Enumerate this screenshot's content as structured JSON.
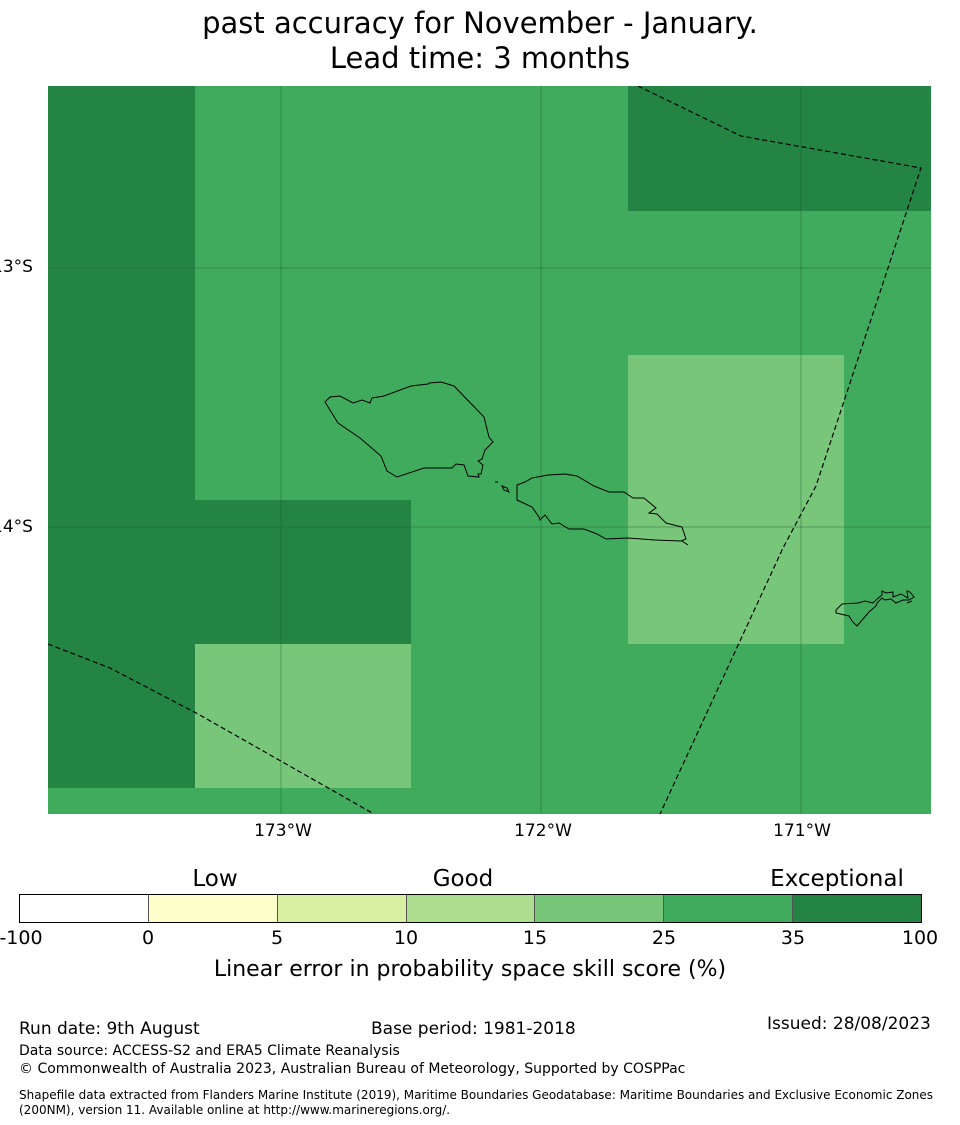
{
  "title": {
    "line2": "past accuracy for November - January.",
    "line3": "Lead time: 3 months"
  },
  "map": {
    "lat_labels": [
      "13°S",
      "14°S"
    ],
    "lon_labels": [
      "173°W",
      "172°W",
      "171°W"
    ]
  },
  "colorbar": {
    "categories": [
      "Low",
      "Good",
      "Exceptional"
    ],
    "ticks": [
      "-100",
      "0",
      "5",
      "10",
      "15",
      "25",
      "35",
      "100"
    ],
    "colors": [
      "#ffffff",
      "#ffffcc",
      "#d9f0a3",
      "#addd8e",
      "#78c679",
      "#41ab5d",
      "#238443"
    ],
    "label": "Linear error in probability space skill score (%)"
  },
  "footer": {
    "run_date": "Run date: 9th August",
    "base_period": "Base period: 1981-2018",
    "issued": "Issued: 28/08/2023",
    "data_source": "Data source: ACCESS-S2 and ERA5 Climate Reanalysis",
    "copyright": "© Commonwealth of Australia 2023, Australian Bureau of Meteorology, Supported by COSPPac",
    "shapefile": "Shapefile data extracted from Flanders Marine Institute (2019), Maritime Boundaries Geodatabase: Maritime Boundaries and Exclusive Economic Zones (200NM), version 11. Available online at http://www.marineregions.org/."
  }
}
